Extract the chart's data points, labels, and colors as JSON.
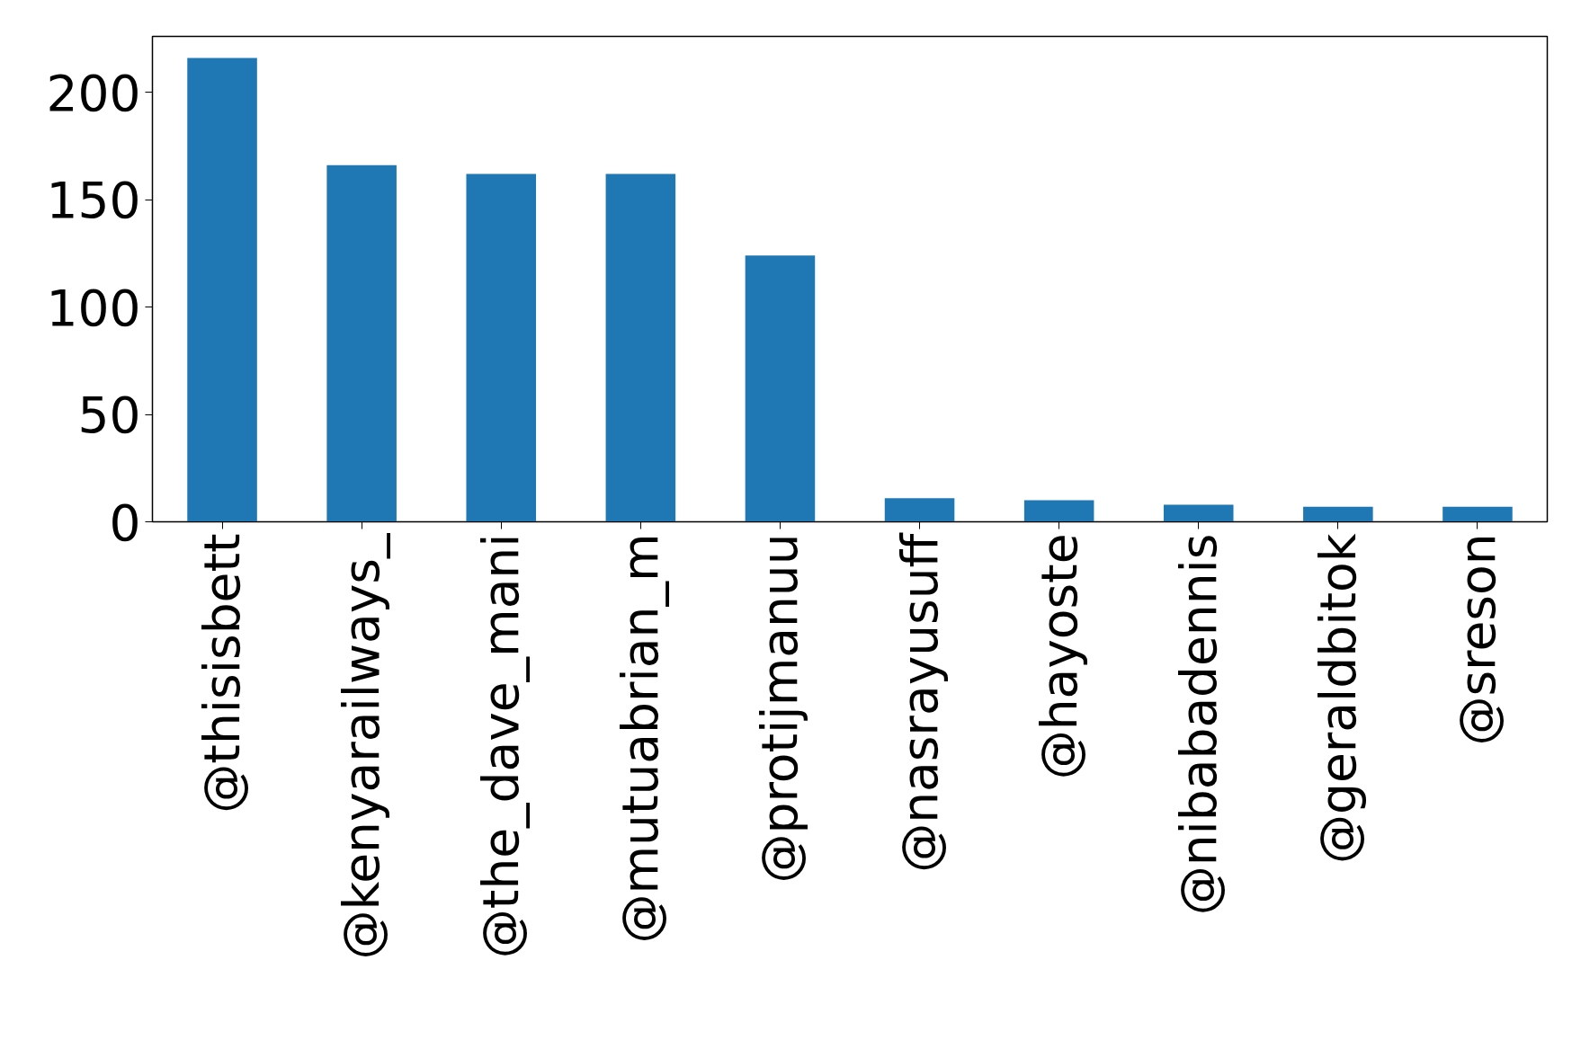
{
  "chart_data": {
    "type": "bar",
    "categories": [
      "@thisisbett",
      "@kenyarailways_",
      "@the_dave_mani",
      "@mutuabrian_m",
      "@protijmanuu",
      "@nasrayusuff",
      "@hayoste",
      "@nibabadennis",
      "@geraldbitok",
      "@sreson"
    ],
    "values": [
      216,
      166,
      162,
      162,
      124,
      11,
      10,
      8,
      7,
      7
    ],
    "color": "#1f77b4",
    "ylim": [
      0,
      226
    ],
    "yticks": [
      0,
      50,
      100,
      150,
      200
    ],
    "grid": false
  }
}
